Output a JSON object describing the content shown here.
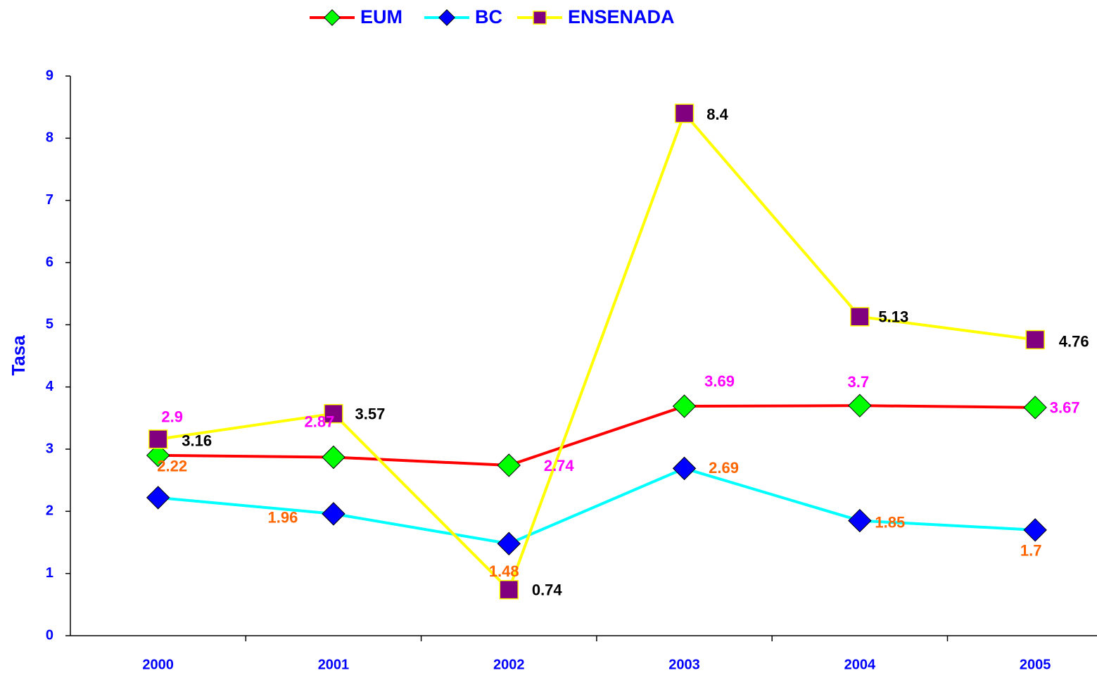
{
  "chart_data": {
    "type": "line",
    "categories": [
      "2000",
      "2001",
      "2002",
      "2003",
      "2004",
      "2005"
    ],
    "series": [
      {
        "name": "EUM",
        "color": "#ff0000",
        "marker": "diamond",
        "marker_color": "#00ff00",
        "label_color": "#ff00ff",
        "values": [
          2.9,
          2.87,
          2.74,
          3.69,
          3.7,
          3.67
        ]
      },
      {
        "name": "BC",
        "color": "#00ffff",
        "marker": "diamond",
        "marker_color": "#0000ff",
        "label_color": "#ff6600",
        "values": [
          2.22,
          1.96,
          1.48,
          2.69,
          1.85,
          1.7
        ]
      },
      {
        "name": "ENSENADA",
        "color": "#ffff00",
        "marker": "square",
        "marker_color": "#800080",
        "label_color": "#000000",
        "values": [
          3.16,
          3.57,
          0.74,
          8.4,
          5.13,
          4.76
        ]
      }
    ],
    "y_label": "Tasa",
    "ylim": [
      0,
      9
    ],
    "yticks": [
      0,
      1,
      2,
      3,
      4,
      5,
      6,
      7,
      8,
      9
    ],
    "grid": false,
    "legend": "top"
  }
}
